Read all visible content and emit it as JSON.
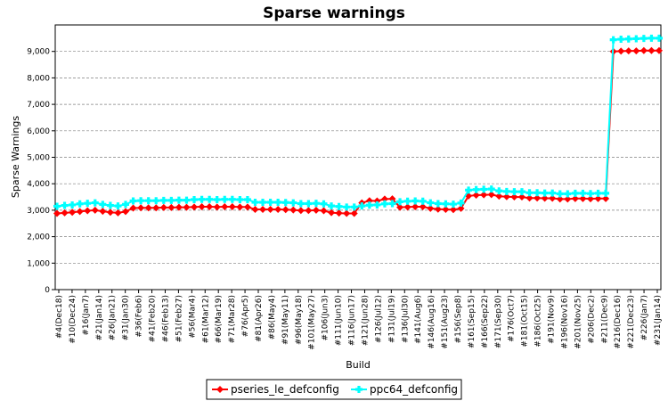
{
  "chart_data": {
    "type": "line",
    "title": "Sparse warnings",
    "xlabel": "Build",
    "ylabel": "Sparse Warnings",
    "ylim": [
      0,
      10000
    ],
    "y_ticks": [
      0,
      1000,
      2000,
      3000,
      4000,
      5000,
      6000,
      7000,
      8000,
      9000
    ],
    "y_tick_labels": [
      "0",
      "1,000",
      "2,000",
      "3,000",
      "4,000",
      "5,000",
      "6,000",
      "7,000",
      "8,000",
      "9,000"
    ],
    "grid": true,
    "legend_position": "bottom-center",
    "x_tick_labels": [
      "#4(Dec18)",
      "#10(Dec24)",
      "#16(Jan7)",
      "#21(Jan14)",
      "#26(Jan21)",
      "#31(Jan30)",
      "#36(Feb6)",
      "#41(Feb20)",
      "#46(Feb13)",
      "#51(Feb27)",
      "#56(Mar4)",
      "#61(Mar12)",
      "#66(Mar19)",
      "#71(Mar28)",
      "#76(Apr5)",
      "#81(Apr26)",
      "#86(May4)",
      "#91(May11)",
      "#96(May18)",
      "#101(May27)",
      "#106(Jun3)",
      "#111(Jun10)",
      "#116(Jun17)",
      "#121(Jun28)",
      "#126(Jul12)",
      "#131(Jul19)",
      "#136(Jul30)",
      "#141(Aug6)",
      "#146(Aug16)",
      "#151(Aug23)",
      "#156(Sep8)",
      "#161(Sep15)",
      "#166(Sep22)",
      "#171(Sep30)",
      "#176(Oct7)",
      "#181(Oct15)",
      "#186(Oct25)",
      "#191(Nov9)",
      "#196(Nov16)",
      "#201(Nov25)",
      "#206(Dec2)",
      "#211(Dec9)",
      "#216(Dec16)",
      "#221(Dec23)",
      "#226(Jan7)",
      "#231(Jan14)"
    ],
    "series": [
      {
        "name": "pseries_le_defconfig",
        "color": "#ff0000",
        "marker": "diamond",
        "values": [
          2880,
          2900,
          2920,
          2950,
          2980,
          3000,
          2960,
          2920,
          2900,
          2950,
          3080,
          3090,
          3090,
          3090,
          3100,
          3100,
          3110,
          3110,
          3120,
          3130,
          3130,
          3120,
          3130,
          3130,
          3120,
          3120,
          3030,
          3030,
          3030,
          3030,
          3020,
          3010,
          2990,
          2990,
          3000,
          2980,
          2910,
          2890,
          2880,
          2880,
          3280,
          3360,
          3350,
          3420,
          3430,
          3110,
          3120,
          3130,
          3130,
          3070,
          3040,
          3030,
          3020,
          3070,
          3540,
          3570,
          3580,
          3590,
          3530,
          3510,
          3500,
          3500,
          3460,
          3460,
          3450,
          3450,
          3420,
          3420,
          3440,
          3440,
          3430,
          3440,
          3440,
          9000,
          9010,
          9020,
          9020,
          9030,
          9030,
          9030
        ]
      },
      {
        "name": "ppc64_defconfig",
        "color": "#00ffff",
        "marker": "cross",
        "values": [
          3150,
          3180,
          3200,
          3240,
          3260,
          3280,
          3220,
          3180,
          3160,
          3220,
          3350,
          3360,
          3360,
          3360,
          3370,
          3370,
          3380,
          3380,
          3400,
          3410,
          3410,
          3400,
          3410,
          3410,
          3400,
          3400,
          3300,
          3300,
          3300,
          3300,
          3290,
          3280,
          3250,
          3250,
          3260,
          3240,
          3160,
          3140,
          3120,
          3120,
          3160,
          3190,
          3200,
          3240,
          3250,
          3320,
          3340,
          3350,
          3340,
          3280,
          3250,
          3240,
          3230,
          3270,
          3760,
          3780,
          3790,
          3800,
          3730,
          3710,
          3700,
          3700,
          3660,
          3660,
          3650,
          3650,
          3620,
          3620,
          3640,
          3640,
          3630,
          3640,
          3640,
          9440,
          9460,
          9470,
          9480,
          9490,
          9500,
          9500
        ]
      }
    ]
  }
}
